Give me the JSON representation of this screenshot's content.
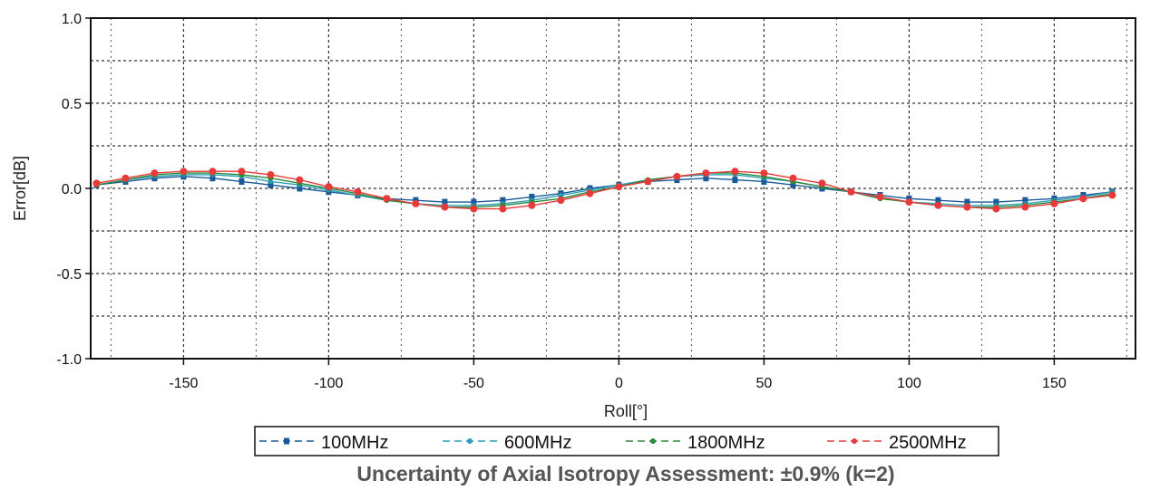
{
  "chart_data": {
    "type": "line",
    "title": "",
    "xlabel": "Roll[°]",
    "ylabel": "Error[dB]",
    "xlim": [
      -182,
      178
    ],
    "ylim": [
      -1.0,
      1.0
    ],
    "xticks": [
      -150,
      -100,
      -50,
      0,
      50,
      100,
      150
    ],
    "xtick_labels": [
      "-150",
      "-100",
      "-50",
      "0",
      "50",
      "100",
      "150"
    ],
    "yticks": [
      1.0,
      0.5,
      0.0,
      -0.5,
      -1.0
    ],
    "ytick_labels": [
      "1.0",
      "0.5",
      "0.0",
      "-0.5",
      "-1.0"
    ],
    "grid": true,
    "legend_position": "bottom",
    "x": [
      -180,
      -170,
      -160,
      -150,
      -140,
      -130,
      -120,
      -110,
      -100,
      -90,
      -80,
      -70,
      -60,
      -50,
      -40,
      -30,
      -20,
      -10,
      0,
      10,
      20,
      30,
      40,
      50,
      60,
      70,
      80,
      90,
      100,
      110,
      120,
      130,
      140,
      150,
      160,
      170
    ],
    "series": [
      {
        "name": "100MHz",
        "color": "#1a5a9a",
        "marker": "square",
        "values": [
          0.02,
          0.04,
          0.06,
          0.07,
          0.06,
          0.04,
          0.02,
          0.0,
          -0.02,
          -0.04,
          -0.06,
          -0.07,
          -0.08,
          -0.08,
          -0.07,
          -0.05,
          -0.03,
          0.0,
          0.02,
          0.04,
          0.05,
          0.06,
          0.05,
          0.04,
          0.02,
          0.0,
          -0.02,
          -0.04,
          -0.06,
          -0.07,
          -0.08,
          -0.08,
          -0.07,
          -0.06,
          -0.04,
          -0.02
        ]
      },
      {
        "name": "600MHz",
        "color": "#2aa0b8",
        "marker": "dot",
        "values": [
          0.02,
          0.05,
          0.07,
          0.08,
          0.08,
          0.07,
          0.04,
          0.02,
          -0.01,
          -0.04,
          -0.07,
          -0.09,
          -0.1,
          -0.1,
          -0.09,
          -0.07,
          -0.04,
          -0.01,
          0.02,
          0.05,
          0.07,
          0.08,
          0.08,
          0.06,
          0.04,
          0.01,
          -0.02,
          -0.05,
          -0.08,
          -0.09,
          -0.1,
          -0.1,
          -0.09,
          -0.07,
          -0.05,
          -0.02
        ]
      },
      {
        "name": "1800MHz",
        "color": "#2a8a3a",
        "marker": "dot",
        "values": [
          0.02,
          0.05,
          0.08,
          0.09,
          0.09,
          0.08,
          0.06,
          0.03,
          0.0,
          -0.03,
          -0.07,
          -0.09,
          -0.11,
          -0.11,
          -0.1,
          -0.08,
          -0.06,
          -0.02,
          0.01,
          0.05,
          0.07,
          0.09,
          0.09,
          0.07,
          0.04,
          0.01,
          -0.02,
          -0.06,
          -0.08,
          -0.1,
          -0.11,
          -0.11,
          -0.1,
          -0.08,
          -0.06,
          -0.03
        ]
      },
      {
        "name": "2500MHz",
        "color": "#e83a3a",
        "marker": "dot",
        "values": [
          0.03,
          0.06,
          0.09,
          0.1,
          0.1,
          0.1,
          0.08,
          0.05,
          0.01,
          -0.02,
          -0.06,
          -0.09,
          -0.11,
          -0.12,
          -0.12,
          -0.1,
          -0.07,
          -0.03,
          0.01,
          0.04,
          0.07,
          0.09,
          0.1,
          0.09,
          0.06,
          0.03,
          -0.02,
          -0.05,
          -0.08,
          -0.1,
          -0.11,
          -0.12,
          -0.11,
          -0.09,
          -0.06,
          -0.04
        ]
      }
    ]
  },
  "caption": "Uncertainty of Axial Isotropy Assessment: ±0.9% (k=2)"
}
